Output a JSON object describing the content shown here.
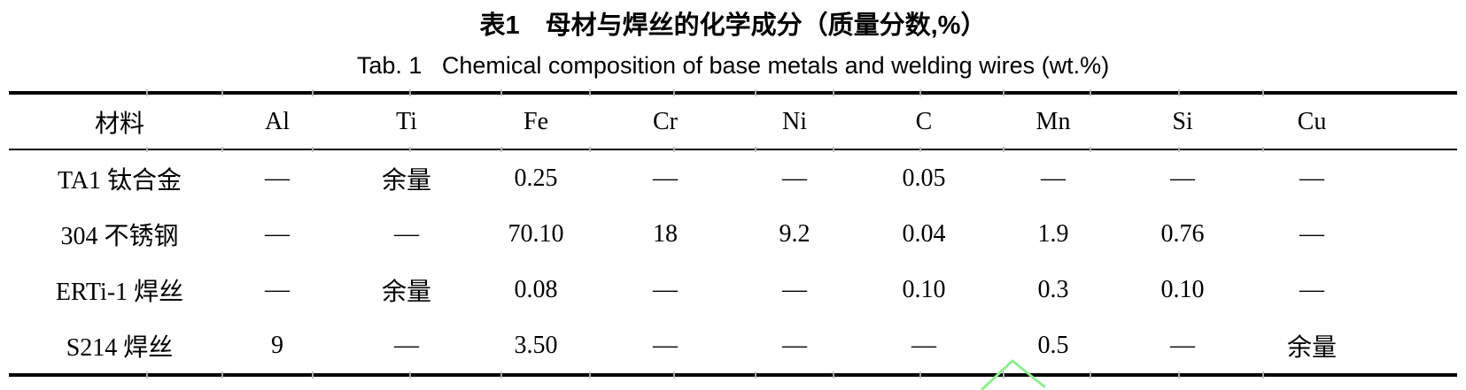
{
  "titles": {
    "zh": "表1　母材与焊丝的化学成分（质量分数,%）",
    "en": "Tab. 1   Chemical composition of base metals and welding wires (wt.%)"
  },
  "chart_data": {
    "type": "table",
    "columns": [
      "材料",
      "Al",
      "Ti",
      "Fe",
      "Cr",
      "Ni",
      "C",
      "Mn",
      "Si",
      "Cu"
    ],
    "rows": [
      [
        "TA1 钛合金",
        "—",
        "余量",
        "0.25",
        "—",
        "—",
        "0.05",
        "—",
        "—",
        "—"
      ],
      [
        "304 不锈钢",
        "—",
        "—",
        "70.10",
        "18",
        "9.2",
        "0.04",
        "1.9",
        "0.76",
        "—"
      ],
      [
        "ERTi-1 焊丝",
        "—",
        "余量",
        "0.08",
        "—",
        "—",
        "0.10",
        "0.3",
        "0.10",
        "—"
      ],
      [
        "S214 焊丝",
        "9",
        "—",
        "3.50",
        "—",
        "—",
        "—",
        "0.5",
        "—",
        "余量"
      ]
    ]
  },
  "colors": {
    "text": "#000000",
    "background": "#ffffff",
    "rule": "#000000",
    "watermark": "#90ee90"
  }
}
